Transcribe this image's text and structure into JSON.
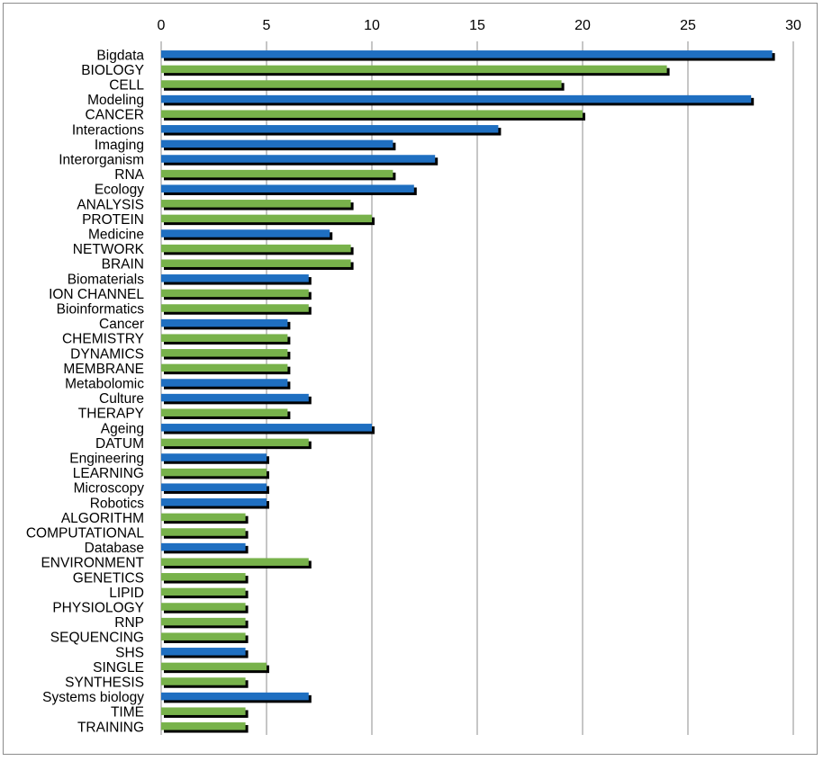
{
  "chart_data": {
    "type": "bar",
    "orientation": "horizontal",
    "xlim": [
      0,
      30
    ],
    "xticks": [
      0,
      5,
      10,
      15,
      20,
      25,
      30
    ],
    "grid": true,
    "legend": "none",
    "colors": {
      "blue": "#1f6fc1",
      "green": "#78b24b",
      "shadow": "#000000",
      "grid": "#8c8c8c"
    },
    "bars": [
      {
        "label": "Bigdata",
        "value": 29,
        "color": "blue"
      },
      {
        "label": "BIOLOGY",
        "value": 24,
        "color": "green"
      },
      {
        "label": "CELL",
        "value": 19,
        "color": "green"
      },
      {
        "label": "Modeling",
        "value": 28,
        "color": "blue"
      },
      {
        "label": "CANCER",
        "value": 20,
        "color": "green"
      },
      {
        "label": "Interactions",
        "value": 16,
        "color": "blue"
      },
      {
        "label": "Imaging",
        "value": 11,
        "color": "blue"
      },
      {
        "label": "Interorganism",
        "value": 13,
        "color": "blue"
      },
      {
        "label": "RNA",
        "value": 11,
        "color": "green"
      },
      {
        "label": "Ecology",
        "value": 12,
        "color": "blue"
      },
      {
        "label": "ANALYSIS",
        "value": 9,
        "color": "green"
      },
      {
        "label": "PROTEIN",
        "value": 10,
        "color": "green"
      },
      {
        "label": "Medicine",
        "value": 8,
        "color": "blue"
      },
      {
        "label": "NETWORK",
        "value": 9,
        "color": "green"
      },
      {
        "label": "BRAIN",
        "value": 9,
        "color": "green"
      },
      {
        "label": "Biomaterials",
        "value": 7,
        "color": "blue"
      },
      {
        "label": "ION CHANNEL",
        "value": 7,
        "color": "green"
      },
      {
        "label": "Bioinformatics",
        "value": 7,
        "color": "green"
      },
      {
        "label": "Cancer",
        "value": 6,
        "color": "blue"
      },
      {
        "label": "CHEMISTRY",
        "value": 6,
        "color": "green"
      },
      {
        "label": "DYNAMICS",
        "value": 6,
        "color": "green"
      },
      {
        "label": "MEMBRANE",
        "value": 6,
        "color": "green"
      },
      {
        "label": "Metabolomic",
        "value": 6,
        "color": "blue"
      },
      {
        "label": "Culture",
        "value": 7,
        "color": "blue"
      },
      {
        "label": "THERAPY",
        "value": 6,
        "color": "green"
      },
      {
        "label": "Ageing",
        "value": 10,
        "color": "blue"
      },
      {
        "label": "DATUM",
        "value": 7,
        "color": "green"
      },
      {
        "label": "Engineering",
        "value": 5,
        "color": "blue"
      },
      {
        "label": "LEARNING",
        "value": 5,
        "color": "green"
      },
      {
        "label": "Microscopy",
        "value": 5,
        "color": "blue"
      },
      {
        "label": "Robotics",
        "value": 5,
        "color": "blue"
      },
      {
        "label": "ALGORITHM",
        "value": 4,
        "color": "green"
      },
      {
        "label": "COMPUTATIONAL",
        "value": 4,
        "color": "green"
      },
      {
        "label": "Database",
        "value": 4,
        "color": "blue"
      },
      {
        "label": "ENVIRONMENT",
        "value": 7,
        "color": "green"
      },
      {
        "label": "GENETICS",
        "value": 4,
        "color": "green"
      },
      {
        "label": "LIPID",
        "value": 4,
        "color": "green"
      },
      {
        "label": "PHYSIOLOGY",
        "value": 4,
        "color": "green"
      },
      {
        "label": "RNP",
        "value": 4,
        "color": "green"
      },
      {
        "label": "SEQUENCING",
        "value": 4,
        "color": "green"
      },
      {
        "label": "SHS",
        "value": 4,
        "color": "blue"
      },
      {
        "label": "SINGLE",
        "value": 5,
        "color": "green"
      },
      {
        "label": "SYNTHESIS",
        "value": 4,
        "color": "green"
      },
      {
        "label": "Systems biology",
        "value": 7,
        "color": "blue"
      },
      {
        "label": "TIME",
        "value": 4,
        "color": "green"
      },
      {
        "label": "TRAINING",
        "value": 4,
        "color": "green"
      }
    ]
  }
}
